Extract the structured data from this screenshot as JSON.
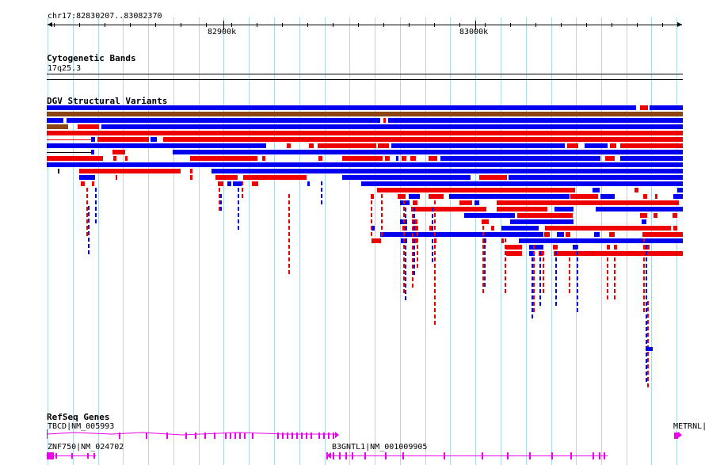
{
  "region": "chr17:82830207..83082370",
  "scale": {
    "ticks": [
      "82900k",
      "83000k"
    ]
  },
  "tracks": {
    "cytoband": {
      "title": "Cytogenetic Bands",
      "band_label": "17q25.3"
    },
    "dgv": {
      "title": "DGV Structural Variants"
    },
    "refseq": {
      "title": "RefSeq Genes",
      "genes": [
        "TBCD|NM_005993",
        "ZNF750|NM_024702",
        "B3GNTL1|NM_001009905",
        "METRNL|"
      ]
    }
  },
  "colors": {
    "gain": "#0000ee",
    "loss": "#ee0000",
    "inversion": "#8b4513",
    "gene": "#ee00ee",
    "grid": "#add8e6"
  }
}
